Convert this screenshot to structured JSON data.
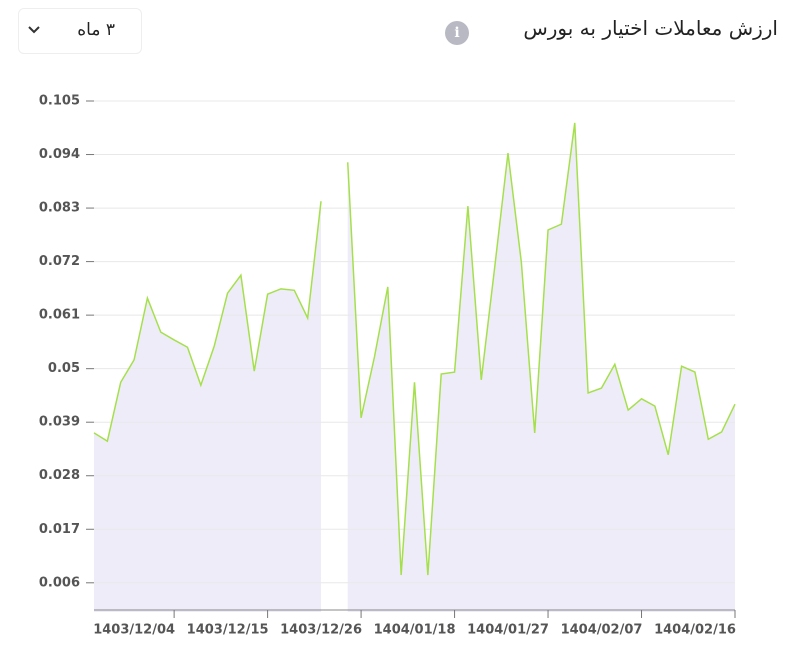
{
  "controls": {
    "period": "۳ ماه"
  },
  "chart_data": {
    "type": "line",
    "title": "ارزش معاملات اختیار به بورس",
    "categories": [
      null,
      null,
      null,
      null,
      null,
      null,
      "1403/12/04",
      null,
      null,
      null,
      null,
      null,
      null,
      "1403/12/15",
      null,
      null,
      null,
      null,
      null,
      null,
      "1403/12/26",
      null,
      null,
      null,
      null,
      null,
      null,
      "1404/01/18",
      null,
      null,
      null,
      null,
      null,
      null,
      "1404/01/27",
      null,
      null,
      null,
      null,
      null,
      null,
      "1404/02/07",
      null,
      null,
      null,
      null,
      null,
      null,
      "1404/02/16"
    ],
    "values": [
      0.0368,
      0.0351,
      0.0472,
      0.0518,
      0.0645,
      0.0575,
      0.0559,
      0.0544,
      0.0466,
      0.0546,
      0.0655,
      0.0692,
      0.0495,
      0.0653,
      0.0664,
      0.0661,
      0.0604,
      0.0844,
      null,
      0.0924,
      0.0399,
      0.0524,
      0.0668,
      0.0076,
      0.0472,
      0.0076,
      0.0489,
      0.0493,
      0.0834,
      0.0477,
      0.0707,
      0.0943,
      0.0719,
      0.0368,
      0.0785,
      0.0797,
      0.1005,
      0.045,
      0.046,
      0.0509,
      0.0415,
      0.0438,
      0.0423,
      0.0323,
      0.0505,
      0.0493,
      0.0355,
      0.037,
      0.0427
    ],
    "color": "#a5e04c",
    "area_color": "#efecfa",
    "ylim": [
      0,
      0.105
    ],
    "yticks": [
      0.006,
      0.017,
      0.028,
      0.039,
      0.05,
      0.061,
      0.072,
      0.083,
      0.094,
      0.105
    ],
    "grid": true
  }
}
